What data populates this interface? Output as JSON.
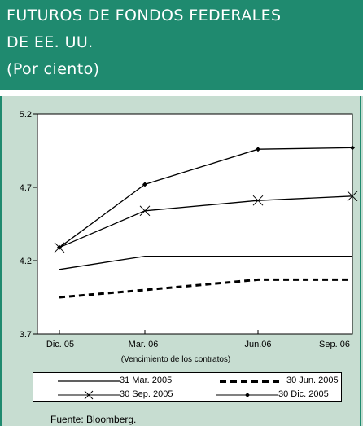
{
  "header": {
    "line1": "FUTUROS DE FONDOS FEDERALES",
    "line2": "DE EE. UU.",
    "line3": "(Por ciento)"
  },
  "source": "Fuente:  Bloomberg.",
  "colors": {
    "header_bg": "#1f8a6f",
    "panel_bg": "#c7ddd1",
    "line": "#000000"
  },
  "chart_data": {
    "type": "line",
    "categories": [
      "Dic. 05",
      "Mar. 06",
      "Jun.06",
      "Sep. 06"
    ],
    "xlabel": "(Vencimiento de los contratos)",
    "ylabel": "",
    "ylim": [
      3.7,
      5.2
    ],
    "yticks": [
      "5.2",
      "4.7",
      "4.2",
      "3.7"
    ],
    "grid": false,
    "legend_position": "bottom",
    "series": [
      {
        "name": "31 Mar. 2005",
        "style": "solid",
        "marker": "none",
        "values": [
          4.14,
          4.23,
          4.23,
          4.23
        ]
      },
      {
        "name": "30 Jun. 2005",
        "style": "dashed",
        "marker": "none",
        "values": [
          3.95,
          4.0,
          4.07,
          4.07
        ]
      },
      {
        "name": "30 Sep. 2005",
        "style": "solid",
        "marker": "x",
        "values": [
          4.29,
          4.54,
          4.61,
          4.64
        ]
      },
      {
        "name": "30 Dic. 2005",
        "style": "solid",
        "marker": "diamond",
        "values": [
          4.29,
          4.72,
          4.96,
          4.97
        ]
      }
    ]
  }
}
